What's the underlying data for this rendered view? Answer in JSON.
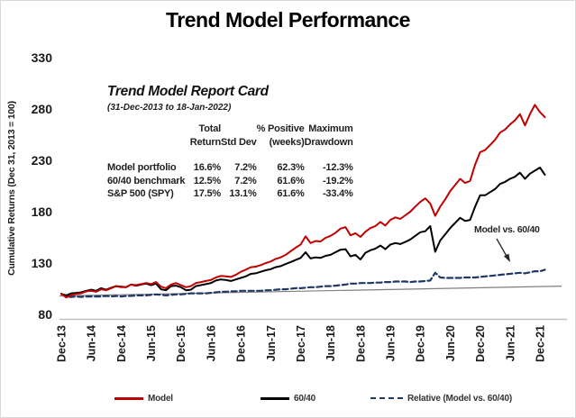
{
  "title": "Trend Model Performance",
  "report_card": {
    "title": "Trend Model Report Card",
    "subtitle": "(31-Dec-2013 to 18-Jan-2022)",
    "columns": [
      {
        "line1": "Total",
        "line2": "Return"
      },
      {
        "line1": "",
        "line2": "Std Dev"
      },
      {
        "line1": "% Positive",
        "line2": "(weeks)"
      },
      {
        "line1": "Maximum",
        "line2": "Drawdown"
      }
    ],
    "rows": [
      {
        "label": "Model portfolio",
        "total_return": "16.6%",
        "std_dev": "7.2%",
        "pct_positive": "62.3%",
        "max_drawdown": "-12.3%"
      },
      {
        "label": "60/40 benchmark",
        "total_return": "12.5%",
        "std_dev": "7.2%",
        "pct_positive": "61.6%",
        "max_drawdown": "-19.2%"
      },
      {
        "label": "S&P 500 (SPY)",
        "total_return": "17.5%",
        "std_dev": "13.1%",
        "pct_positive": "61.6%",
        "max_drawdown": "-33.4%"
      }
    ]
  },
  "annotation": {
    "label": "Model vs. 60/40"
  },
  "chart_data": {
    "type": "line",
    "title": "Trend Model Performance",
    "ylabel": "Cumulative Returns (Dec 31, 2013 = 100)",
    "ylim": [
      80,
      330
    ],
    "yticks": [
      330,
      280,
      230,
      180,
      130,
      80
    ],
    "x_start": "Dec-2013",
    "x_end": "Jan-2022",
    "x_interval": "monthly",
    "xticklabels": [
      "Dec-13",
      "Jun-14",
      "Dec-14",
      "Jun-15",
      "Dec-15",
      "Jun-16",
      "Dec-16",
      "Jun-17",
      "Dec-17",
      "Jun-18",
      "Dec-18",
      "Jun-19",
      "Dec-19",
      "Jun-20",
      "Dec-20",
      "Jun-21",
      "Dec-21"
    ],
    "grid": false,
    "legend_position": "bottom",
    "series": [
      {
        "name": "Model",
        "color": "#C00000",
        "style": "solid",
        "values": [
          100,
          96.5,
          99,
          100,
          100.5,
          102.5,
          103,
          102,
          104.5,
          103.5,
          105.5,
          107.5,
          106.5,
          106.5,
          109,
          108.5,
          109.5,
          110.5,
          109.5,
          111.5,
          107,
          105.5,
          109,
          110.5,
          108.5,
          106.5,
          107.5,
          110.5,
          111.5,
          112.5,
          113.5,
          116,
          117.5,
          117,
          116.5,
          118.5,
          121.5,
          123.5,
          126,
          126.5,
          128,
          130,
          131.5,
          134,
          135.5,
          138,
          141.5,
          145,
          148,
          156,
          149.5,
          151.5,
          151,
          154.5,
          156.5,
          159.5,
          163.5,
          165,
          157,
          159,
          155.5,
          160.5,
          164,
          166,
          170,
          166.5,
          172,
          174.5,
          173,
          176.5,
          180,
          185,
          189.5,
          193,
          188,
          176,
          185,
          192,
          200,
          206,
          212,
          208,
          210,
          226,
          238,
          240,
          245,
          250,
          257,
          260,
          265,
          269,
          275,
          264,
          275,
          284,
          277,
          272
        ]
      },
      {
        "name": "60/40",
        "color": "#000000",
        "style": "solid",
        "values": [
          100,
          98.5,
          100.5,
          101,
          101.5,
          103,
          104,
          103,
          105.5,
          104,
          106,
          107.5,
          107,
          106.5,
          109,
          108,
          109,
          110,
          108.5,
          110,
          104.5,
          103.5,
          107.5,
          108,
          106.5,
          103.5,
          104,
          107.5,
          108.5,
          109.5,
          110.5,
          113,
          114,
          113.5,
          112.5,
          114,
          115.5,
          117,
          119.5,
          120,
          121.5,
          123,
          124,
          126,
          127,
          129,
          131,
          133,
          135,
          140.5,
          134.5,
          135.5,
          135,
          137,
          138,
          140.5,
          143,
          143.5,
          136.5,
          138,
          133.5,
          140,
          142.5,
          144,
          147,
          143.5,
          148,
          149.5,
          148.5,
          150.5,
          153,
          156.5,
          160,
          161,
          166,
          141,
          152,
          158,
          164,
          169,
          174,
          171,
          172,
          185,
          196,
          196,
          199,
          202,
          207,
          209,
          212,
          214,
          218,
          212,
          217,
          220,
          223,
          216
        ]
      },
      {
        "name": "Relative (Model vs. 60/40)",
        "color": "#1F3864",
        "style": "dashed",
        "values": [
          100,
          97.5,
          97,
          97.5,
          97,
          97.5,
          97.5,
          97.5,
          97.5,
          98,
          97.5,
          98,
          97.5,
          98,
          98,
          98.5,
          98.5,
          98.5,
          99,
          99.5,
          99,
          98.5,
          99,
          99.5,
          99.5,
          100,
          100.5,
          100.5,
          100.5,
          100.5,
          101,
          101.5,
          102,
          102,
          102.5,
          102.5,
          103,
          103,
          103,
          103,
          103,
          103.5,
          103.5,
          104,
          104.5,
          104.5,
          105,
          105.5,
          105.5,
          106,
          106.5,
          106.5,
          107,
          107.5,
          107.5,
          108,
          108.5,
          109,
          110,
          110,
          110.5,
          110.5,
          110.5,
          111,
          111,
          111.5,
          111.5,
          112,
          112,
          112,
          111.5,
          112,
          112,
          112.5,
          113,
          120.5,
          116,
          115.5,
          115.5,
          115.5,
          115.5,
          116,
          116,
          116,
          116.5,
          117,
          117.5,
          118,
          118.5,
          119,
          119.5,
          120,
          120.5,
          120,
          121,
          122,
          122,
          123.5
        ]
      }
    ],
    "trendline": {
      "color": "#7F7F7F",
      "start_value": 98,
      "end_value": 107.5
    }
  }
}
